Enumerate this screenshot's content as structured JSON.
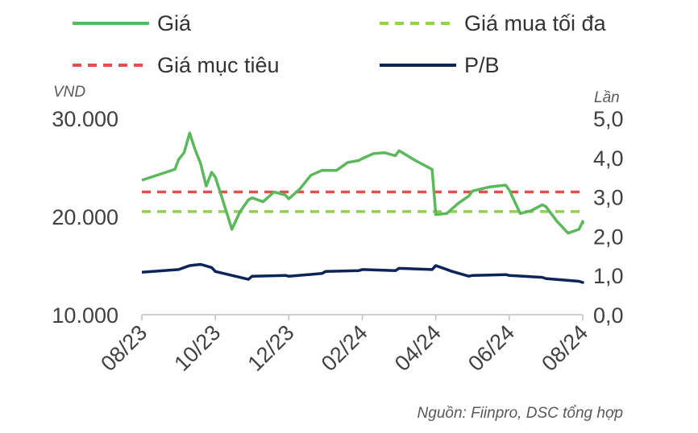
{
  "chart_data": {
    "type": "line",
    "left_axis_unit": "VND",
    "right_axis_unit": "Lần",
    "source": "Nguồn: Fiinpro, DSC tổng hợp",
    "x_ticks": [
      "08/23",
      "10/23",
      "12/23",
      "02/24",
      "04/24",
      "06/24",
      "08/24"
    ],
    "y_left": {
      "min": 10000,
      "max": 30000,
      "ticks": [
        "10.000",
        "20.000",
        "30.000"
      ],
      "tick_values": [
        10000,
        20000,
        30000
      ]
    },
    "y_right": {
      "min": 0,
      "max": 5,
      "ticks": [
        "0,0",
        "1,0",
        "2,0",
        "3,0",
        "4,0",
        "5,0"
      ],
      "tick_values": [
        0,
        1,
        2,
        3,
        4,
        5
      ]
    },
    "x_range": [
      "2023-08",
      "2024-08"
    ],
    "legend_placement": "top",
    "series": [
      {
        "name": "Giá",
        "axis": "left",
        "color": "#5cb85c",
        "dash": "solid",
        "x": [
          "2023-08",
          "2023-08",
          "2023-09",
          "2023-09",
          "2023-09",
          "2023-09",
          "2023-09",
          "2023-09",
          "2023-09",
          "2023-10",
          "2023-10",
          "2023-10",
          "2023-10",
          "2023-10",
          "2023-11",
          "2023-11",
          "2023-11",
          "2023-11",
          "2023-12",
          "2023-12",
          "2023-12",
          "2023-12",
          "2024-01",
          "2024-01",
          "2024-01",
          "2024-01",
          "2024-02",
          "2024-02",
          "2024-02",
          "2024-02",
          "2024-03",
          "2024-03",
          "2024-03",
          "2024-04",
          "2024-04",
          "2024-04",
          "2024-04",
          "2024-05",
          "2024-05",
          "2024-05",
          "2024-06",
          "2024-06",
          "2024-06",
          "2024-06",
          "2024-07",
          "2024-07",
          "2024-07",
          "2024-07",
          "2024-08",
          "2024-08"
        ],
        "values": [
          23700,
          24800,
          25800,
          26500,
          28500,
          26800,
          25400,
          23100,
          24500,
          24000,
          21400,
          18700,
          20500,
          21700,
          21900,
          21500,
          22500,
          22200,
          21800,
          22800,
          24200,
          24700,
          24700,
          24700,
          25500,
          25700,
          25900,
          26400,
          26500,
          26200,
          26700,
          25700,
          24800,
          20200,
          20300,
          21300,
          22100,
          22600,
          23000,
          23200,
          22700,
          20300,
          20600,
          21200,
          21000,
          19500,
          18300,
          18700,
          19500,
          19200
        ]
      },
      {
        "name": "Giá mua tối đa",
        "axis": "left",
        "color": "#92d050",
        "dash": "dashed",
        "x": [
          "2023-08",
          "2024-08"
        ],
        "values": [
          20500,
          20500
        ]
      },
      {
        "name": "Giá mục tiêu",
        "axis": "left",
        "color": "#e05050",
        "dash": "dashed",
        "x": [
          "2023-08",
          "2024-08"
        ],
        "values": [
          22500,
          22500
        ]
      },
      {
        "name": "P/B",
        "axis": "right",
        "color": "#0d2556",
        "dash": "solid",
        "x": [
          "2023-08",
          "2023-09",
          "2023-09",
          "2023-09",
          "2023-09",
          "2023-10",
          "2023-10",
          "2023-11",
          "2023-11",
          "2023-12",
          "2023-12",
          "2024-01",
          "2024-01",
          "2024-02",
          "2024-02",
          "2024-03",
          "2024-03",
          "2024-04",
          "2024-04",
          "2024-04",
          "2024-05",
          "2024-05",
          "2024-06",
          "2024-06",
          "2024-07",
          "2024-07",
          "2024-08",
          "2024-08"
        ],
        "values": [
          1.08,
          1.15,
          1.25,
          1.28,
          1.2,
          1.1,
          0.9,
          0.98,
          1.0,
          0.98,
          1.05,
          1.1,
          1.12,
          1.15,
          1.12,
          1.18,
          1.15,
          1.25,
          1.1,
          0.98,
          1.0,
          1.02,
          1.0,
          0.95,
          0.92,
          0.85,
          0.82,
          0.85
        ]
      }
    ]
  }
}
